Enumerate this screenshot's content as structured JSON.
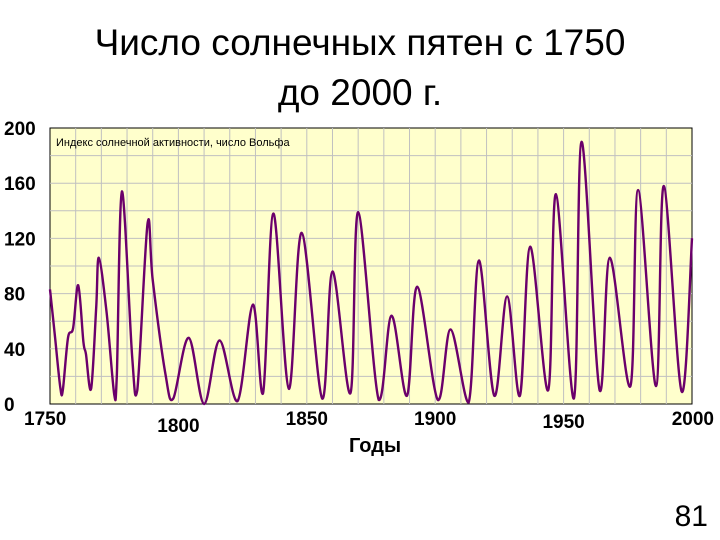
{
  "slide": {
    "title_line1": "Число солнечных пятен с 1750",
    "title_line2": "до 2000 г.",
    "page_number": "81"
  },
  "chart_data": {
    "type": "line",
    "title": "Индекс солнечной активности, число Вольфа",
    "xlabel": "Годы",
    "ylabel": "",
    "xlim": [
      1750,
      2000
    ],
    "ylim": [
      0,
      200
    ],
    "y_ticks": [
      0,
      40,
      80,
      120,
      160,
      200
    ],
    "x_ticks": [
      1750,
      1800,
      1850,
      1900,
      1950,
      2000
    ],
    "grid": true,
    "colors": {
      "plot_bg": "#FFFFCC",
      "line": "#6B006B",
      "grid": "#C0C0C0"
    },
    "series": [
      {
        "x": [
          1750,
          1752,
          1754,
          1755,
          1757,
          1759,
          1761,
          1763,
          1764,
          1766,
          1768,
          1769,
          1772,
          1775,
          1776,
          1778,
          1782,
          1784,
          1788,
          1790,
          1795,
          1798,
          1804,
          1810,
          1816,
          1823,
          1829,
          1833,
          1837,
          1843,
          1848,
          1856,
          1860,
          1867,
          1870,
          1878,
          1883,
          1889,
          1893,
          1901,
          1906,
          1913,
          1917,
          1923,
          1928,
          1933,
          1937,
          1944,
          1947,
          1954,
          1957,
          1964,
          1968,
          1976,
          1979,
          1986,
          1989,
          1996,
          2000
        ],
        "y": [
          83,
          48,
          12,
          10,
          48,
          55,
          86,
          45,
          36,
          11,
          70,
          106,
          67,
          7,
          20,
          154,
          34,
          10,
          131,
          90,
          21,
          4,
          48,
          0,
          46,
          2,
          72,
          8,
          138,
          11,
          124,
          4,
          96,
          8,
          139,
          3,
          64,
          6,
          85,
          3,
          54,
          1,
          104,
          6,
          78,
          6,
          114,
          10,
          152,
          4,
          190,
          10,
          106,
          13,
          155,
          13,
          158,
          9,
          120
        ]
      }
    ]
  }
}
